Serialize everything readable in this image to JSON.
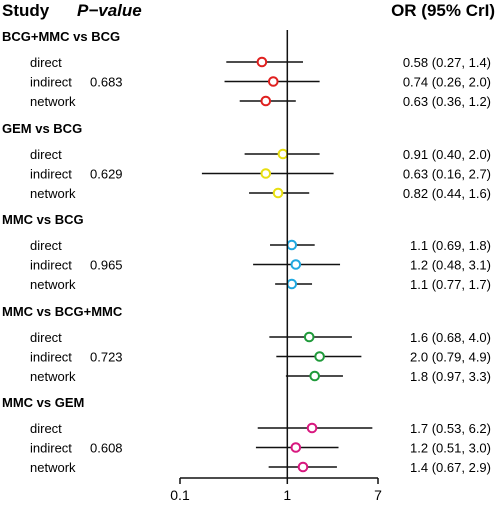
{
  "header": {
    "study": "Study",
    "pvalue": "P−value",
    "or": "OR (95% CrI)"
  },
  "chart_data": {
    "type": "forest",
    "x_scale": "log",
    "xlim": [
      0.1,
      7
    ],
    "x_ticks": [
      "0.1",
      "1",
      "7"
    ],
    "reference_line": 1,
    "groups": [
      {
        "comparison": "BCG+MMC vs BCG",
        "pvalue": "0.683",
        "color": "#e0201f",
        "rows": [
          {
            "label": "direct",
            "or": 0.58,
            "lo": 0.27,
            "hi": 1.4,
            "text": "0.58 (0.27, 1.4)"
          },
          {
            "label": "indirect",
            "or": 0.74,
            "lo": 0.26,
            "hi": 2.0,
            "text": "0.74 (0.26, 2.0)"
          },
          {
            "label": "network",
            "or": 0.63,
            "lo": 0.36,
            "hi": 1.2,
            "text": "0.63 (0.36, 1.2)"
          }
        ]
      },
      {
        "comparison": "GEM vs BCG",
        "pvalue": "0.629",
        "color": "#e8df10",
        "rows": [
          {
            "label": "direct",
            "or": 0.91,
            "lo": 0.4,
            "hi": 2.0,
            "text": "0.91 (0.40, 2.0)"
          },
          {
            "label": "indirect",
            "or": 0.63,
            "lo": 0.16,
            "hi": 2.7,
            "text": "0.63 (0.16, 2.7)"
          },
          {
            "label": "network",
            "or": 0.82,
            "lo": 0.44,
            "hi": 1.6,
            "text": "0.82 (0.44, 1.6)"
          }
        ]
      },
      {
        "comparison": "MMC vs BCG",
        "pvalue": "0.965",
        "color": "#1fa8e0",
        "rows": [
          {
            "label": "direct",
            "or": 1.1,
            "lo": 0.69,
            "hi": 1.8,
            "text": "1.1 (0.69, 1.8)"
          },
          {
            "label": "indirect",
            "or": 1.2,
            "lo": 0.48,
            "hi": 3.1,
            "text": "1.2 (0.48, 3.1)"
          },
          {
            "label": "network",
            "or": 1.1,
            "lo": 0.77,
            "hi": 1.7,
            "text": "1.1 (0.77, 1.7)"
          }
        ]
      },
      {
        "comparison": "MMC vs BCG+MMC",
        "pvalue": "0.723",
        "color": "#1f9a3a",
        "rows": [
          {
            "label": "direct",
            "or": 1.6,
            "lo": 0.68,
            "hi": 4.0,
            "text": "1.6 (0.68, 4.0)"
          },
          {
            "label": "indirect",
            "or": 2.0,
            "lo": 0.79,
            "hi": 4.9,
            "text": "2.0 (0.79, 4.9)"
          },
          {
            "label": "network",
            "or": 1.8,
            "lo": 0.97,
            "hi": 3.3,
            "text": "1.8 (0.97, 3.3)"
          }
        ]
      },
      {
        "comparison": "MMC vs GEM",
        "pvalue": "0.608",
        "color": "#d8187f",
        "rows": [
          {
            "label": "direct",
            "or": 1.7,
            "lo": 0.53,
            "hi": 6.2,
            "text": "1.7 (0.53, 6.2)"
          },
          {
            "label": "indirect",
            "or": 1.2,
            "lo": 0.51,
            "hi": 3.0,
            "text": "1.2 (0.51, 3.0)"
          },
          {
            "label": "network",
            "or": 1.4,
            "lo": 0.67,
            "hi": 2.9,
            "text": "1.4 (0.67, 2.9)"
          }
        ]
      }
    ]
  }
}
